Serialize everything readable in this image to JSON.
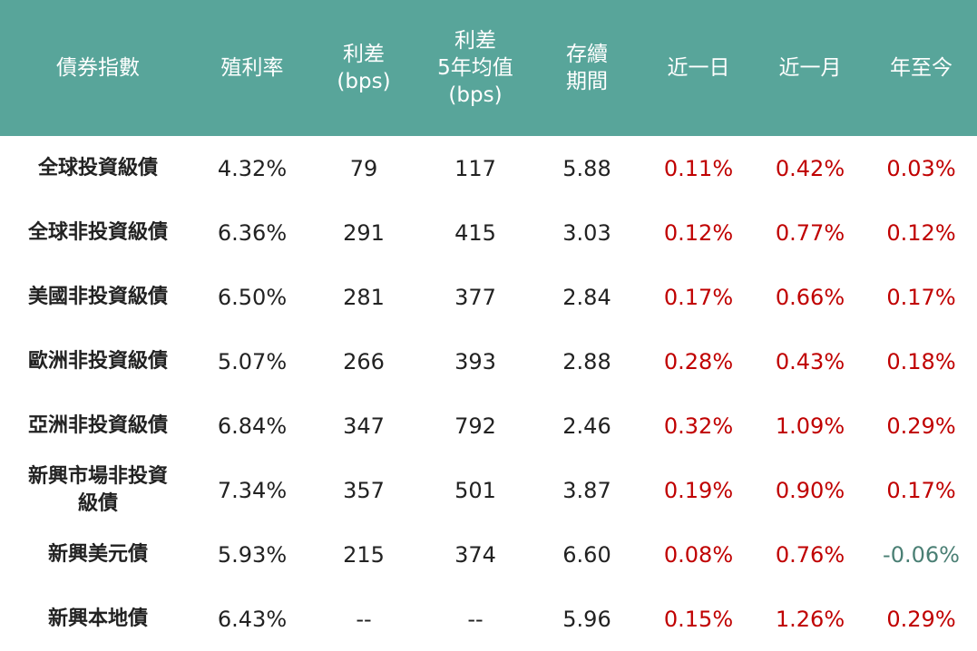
{
  "colors": {
    "header_bg": "#58A59A",
    "positive": "#C00000",
    "negative": "#4A7F74"
  },
  "headers": [
    "債券指數",
    "殖利率",
    "利差\n(bps)",
    "利差\n5年均值\n(bps)",
    "存續\n期間",
    "近一日",
    "近一月",
    "年至今"
  ],
  "rows": [
    [
      "全球投資級債",
      "4.32%",
      "79",
      "117",
      "5.88",
      "0.11%",
      "0.42%",
      "0.03%"
    ],
    [
      "全球非投資級債",
      "6.36%",
      "291",
      "415",
      "3.03",
      "0.12%",
      "0.77%",
      "0.12%"
    ],
    [
      "美國非投資級債",
      "6.50%",
      "281",
      "377",
      "2.84",
      "0.17%",
      "0.66%",
      "0.17%"
    ],
    [
      "歐洲非投資級債",
      "5.07%",
      "266",
      "393",
      "2.88",
      "0.28%",
      "0.43%",
      "0.18%"
    ],
    [
      "亞洲非投資級債",
      "6.84%",
      "347",
      "792",
      "2.46",
      "0.32%",
      "1.09%",
      "0.29%"
    ],
    [
      "新興市場非投資\n級債",
      "7.34%",
      "357",
      "501",
      "3.87",
      "0.19%",
      "0.90%",
      "0.17%"
    ],
    [
      "新興美元債",
      "5.93%",
      "215",
      "374",
      "6.60",
      "0.08%",
      "0.76%",
      "-0.06%"
    ],
    [
      "新興本地債",
      "6.43%",
      "--",
      "--",
      "5.96",
      "0.15%",
      "1.26%",
      "0.29%"
    ]
  ]
}
